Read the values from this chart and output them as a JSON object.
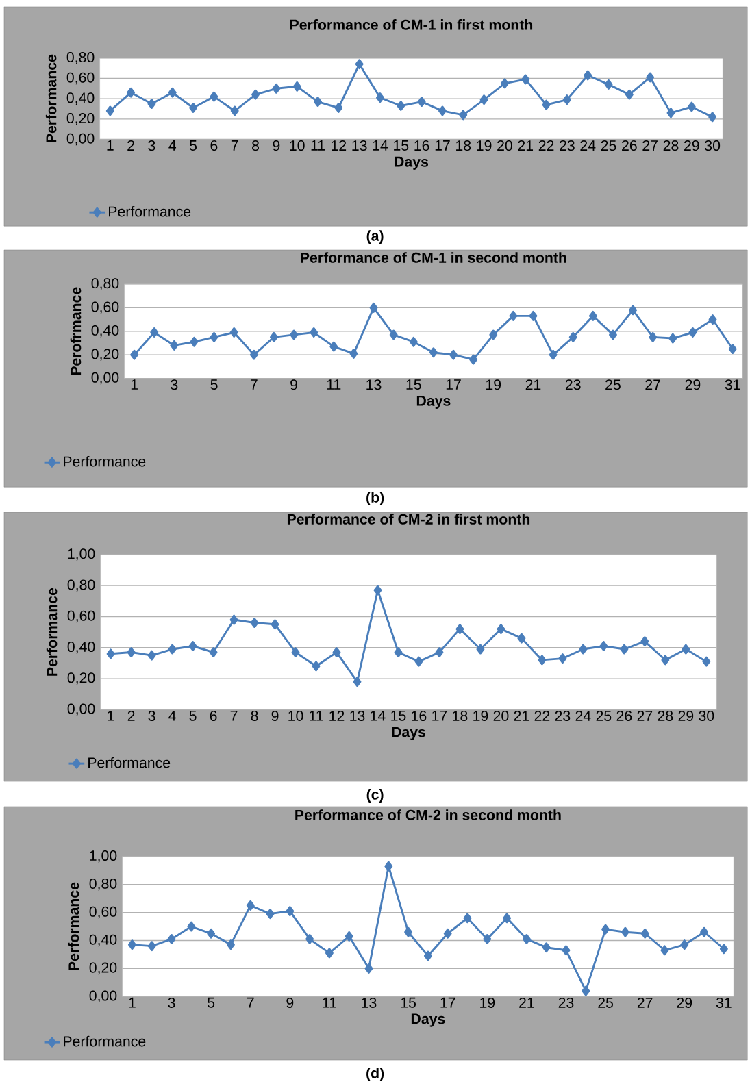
{
  "chart_data": [
    {
      "type": "line",
      "title": "Performance of CM-1 in first month",
      "xlabel": "Days",
      "ylabel": "Performance",
      "annotations": [
        "(a)"
      ],
      "categories": [
        "1",
        "2",
        "3",
        "4",
        "5",
        "6",
        "7",
        "8",
        "9",
        "10",
        "11",
        "12",
        "13",
        "14",
        "15",
        "16",
        "17",
        "18",
        "19",
        "20",
        "21",
        "22",
        "23",
        "24",
        "25",
        "26",
        "27",
        "28",
        "29",
        "30"
      ],
      "series": [
        {
          "name": "Performance",
          "color": "#4a7ebb",
          "values": [
            0.28,
            0.46,
            0.35,
            0.46,
            0.31,
            0.42,
            0.28,
            0.44,
            0.5,
            0.52,
            0.37,
            0.31,
            0.74,
            0.41,
            0.33,
            0.37,
            0.28,
            0.24,
            0.39,
            0.55,
            0.59,
            0.34,
            0.39,
            0.63,
            0.54,
            0.44,
            0.61,
            0.26,
            0.32,
            0.22
          ]
        }
      ],
      "ylim": [
        0,
        0.8
      ],
      "yticks": [
        {
          "value": 0,
          "label": "0,00"
        },
        {
          "value": 0.2,
          "label": "0,20"
        },
        {
          "value": 0.4,
          "label": "0,40"
        },
        {
          "value": 0.6,
          "label": "0,60"
        },
        {
          "value": 0.8,
          "label": "0,80"
        }
      ],
      "grid": "y",
      "legend": "bottom left",
      "marker": "diamond",
      "line_style": "solid"
    },
    {
      "type": "line",
      "title": "Performance of CM-1 in second month",
      "xlabel": "Days",
      "ylabel": "Perofrmance",
      "annotations": [
        "(b)"
      ],
      "categories": [
        "1",
        null,
        "3",
        null,
        "5",
        null,
        "7",
        null,
        "9",
        null,
        "11",
        null,
        "13",
        null,
        "15",
        null,
        "17",
        null,
        "19",
        null,
        "21",
        null,
        "23",
        null,
        "25",
        null,
        "27",
        null,
        "29",
        null,
        "31"
      ],
      "series": [
        {
          "name": "Performance",
          "color": "#4a7ebb",
          "values": [
            0.2,
            0.39,
            0.28,
            0.31,
            0.35,
            0.39,
            0.2,
            0.35,
            0.37,
            0.39,
            0.27,
            0.21,
            0.6,
            0.37,
            0.31,
            0.22,
            0.2,
            0.16,
            0.37,
            0.53,
            0.53,
            0.2,
            0.35,
            0.53,
            0.37,
            0.58,
            0.35,
            0.34,
            0.39,
            0.5,
            0.25
          ]
        }
      ],
      "ylim": [
        0,
        0.8
      ],
      "yticks": [
        {
          "value": 0,
          "label": "0,00"
        },
        {
          "value": 0.2,
          "label": "0,20"
        },
        {
          "value": 0.4,
          "label": "0,40"
        },
        {
          "value": 0.6,
          "label": "0,60"
        },
        {
          "value": 0.8,
          "label": "0,80"
        }
      ],
      "grid": "y",
      "legend": "bottom left",
      "marker": "diamond",
      "line_style": "solid"
    },
    {
      "type": "line",
      "title": "Performance of CM-2 in first month",
      "xlabel": "Days",
      "ylabel": "Performance",
      "annotations": [
        "(c)"
      ],
      "categories": [
        "1",
        "2",
        "3",
        "4",
        "5",
        "6",
        "7",
        "8",
        "9",
        "10",
        "11",
        "12",
        "13",
        "14",
        "15",
        "16",
        "17",
        "18",
        "19",
        "20",
        "21",
        "22",
        "23",
        "24",
        "25",
        "26",
        "27",
        "28",
        "29",
        "30"
      ],
      "series": [
        {
          "name": "Performance",
          "color": "#4a7ebb",
          "values": [
            0.36,
            0.37,
            0.35,
            0.39,
            0.41,
            0.37,
            0.58,
            0.56,
            0.55,
            0.37,
            0.28,
            0.37,
            0.18,
            0.77,
            0.37,
            0.31,
            0.37,
            0.52,
            0.39,
            0.52,
            0.46,
            0.32,
            0.33,
            0.39,
            0.41,
            0.39,
            0.44,
            0.32,
            0.39,
            0.31
          ]
        }
      ],
      "ylim": [
        0,
        1
      ],
      "yticks": [
        {
          "value": 0,
          "label": "0,00"
        },
        {
          "value": 0.2,
          "label": "0,20"
        },
        {
          "value": 0.4,
          "label": "0,40"
        },
        {
          "value": 0.6,
          "label": "0,60"
        },
        {
          "value": 0.8,
          "label": "0,80"
        },
        {
          "value": 1,
          "label": "1,00"
        }
      ],
      "grid": "y",
      "legend": "bottom left",
      "marker": "diamond",
      "line_style": "solid"
    },
    {
      "type": "line",
      "title": "Performance of CM-2 in second month",
      "xlabel": "Days",
      "ylabel": "Performance",
      "annotations": [
        "(d)"
      ],
      "categories": [
        "1",
        null,
        "3",
        null,
        "5",
        null,
        "7",
        null,
        "9",
        null,
        "11",
        null,
        "13",
        null,
        "15",
        null,
        "17",
        null,
        "19",
        null,
        "21",
        null,
        "23",
        null,
        "25",
        null,
        "27",
        null,
        "29",
        null,
        "31"
      ],
      "series": [
        {
          "name": "Performance",
          "color": "#4a7ebb",
          "values": [
            0.37,
            0.36,
            0.41,
            0.5,
            0.45,
            0.37,
            0.65,
            0.59,
            0.61,
            0.41,
            0.31,
            0.43,
            0.2,
            0.93,
            0.46,
            0.29,
            0.45,
            0.56,
            0.41,
            0.56,
            0.41,
            0.35,
            0.33,
            0.04,
            0.48,
            0.46,
            0.45,
            0.33,
            0.37,
            0.46,
            0.34
          ]
        }
      ],
      "ylim": [
        0,
        1
      ],
      "yticks": [
        {
          "value": 0,
          "label": "0,00"
        },
        {
          "value": 0.2,
          "label": "0,20"
        },
        {
          "value": 0.4,
          "label": "0,40"
        },
        {
          "value": 0.6,
          "label": "0,60"
        },
        {
          "value": 0.8,
          "label": "0,80"
        },
        {
          "value": 1,
          "label": "1,00"
        }
      ],
      "grid": "y",
      "legend": "bottom left",
      "marker": "diamond",
      "line_style": "solid"
    }
  ]
}
